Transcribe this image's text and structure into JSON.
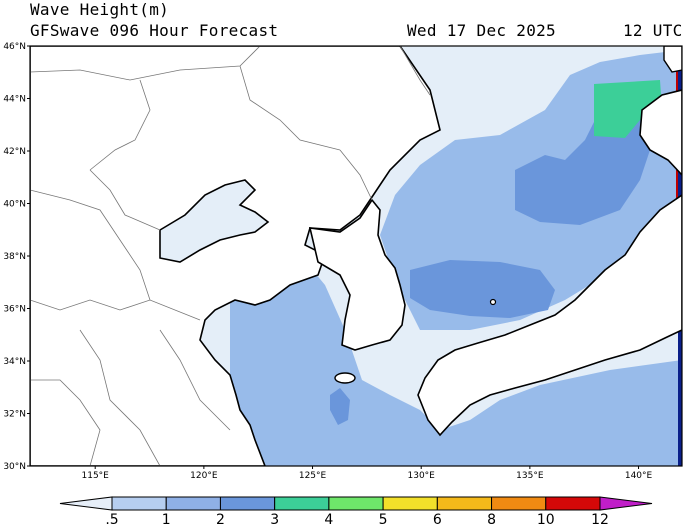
{
  "header": {
    "variable": "Wave Height(m)",
    "model": "GFSwave 096 Hour Forecast",
    "date": "Wed 17 Dec 2025",
    "time": "12 UTC"
  },
  "map": {
    "lon_range": [
      112,
      142
    ],
    "lat_range": [
      30,
      46
    ],
    "lat_ticks": [
      "30°N",
      "32°N",
      "34°N",
      "36°N",
      "38°N",
      "40°N",
      "42°N",
      "44°N",
      "46°N"
    ],
    "lon_ticks": [
      "115°E",
      "120°E",
      "125°E",
      "130°E",
      "135°E",
      "140°E"
    ],
    "colors": {
      "ocean_bg": "#e4eef8",
      "land": "#ffffff",
      "band_0_5_1": "#dde9f7",
      "band_1_2": "#98bbea",
      "band_2_3": "#6a96db",
      "band_3_4": "#3ccf98",
      "band_10_12": "#c00000",
      "boundary": "#000000",
      "admin": "#777777"
    }
  },
  "colorbar": {
    "labels": [
      ".5",
      "1",
      "2",
      "3",
      "4",
      "5",
      "6",
      "8",
      "10",
      "12"
    ],
    "colors": [
      "#e6eef8",
      "#b6cef0",
      "#8fb0e6",
      "#6a96db",
      "#3ccf98",
      "#6ee66a",
      "#f2e02a",
      "#f4b91a",
      "#f08a12",
      "#d40808",
      "#c01ec8"
    ]
  }
}
